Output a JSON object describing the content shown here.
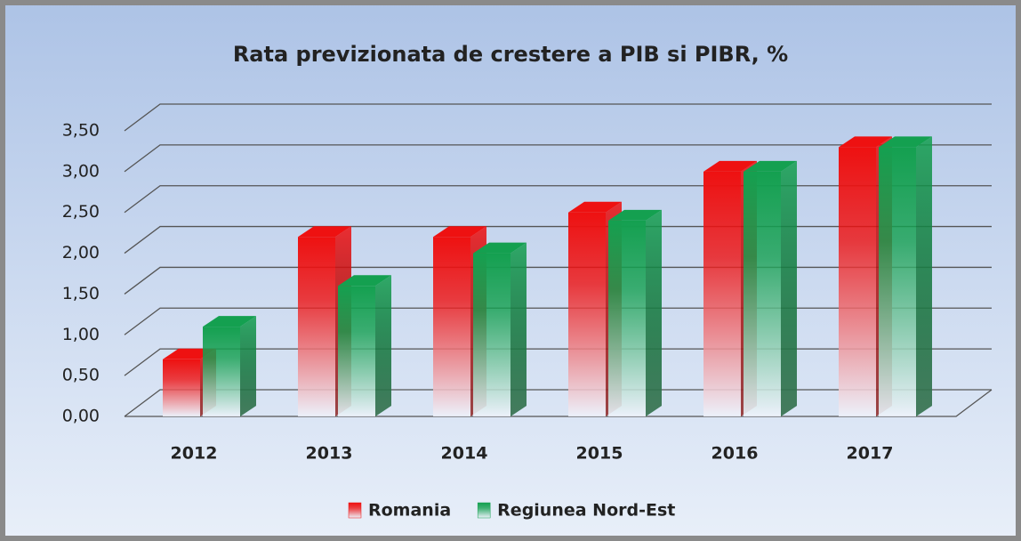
{
  "chart_data": {
    "type": "bar3d",
    "title": "Rata previzionata de crestere a PIB si PIBR, %",
    "categories": [
      "2012",
      "2013",
      "2014",
      "2015",
      "2016",
      "2017"
    ],
    "series": [
      {
        "name": "Romania",
        "color": "#ee1111",
        "values": [
          0.7,
          2.2,
          2.2,
          2.5,
          3.0,
          3.3
        ]
      },
      {
        "name": "Regiunea Nord-Est",
        "color": "#14a050",
        "values": [
          1.1,
          1.6,
          2.0,
          2.4,
          3.0,
          3.3
        ]
      }
    ],
    "ylim": [
      0,
      3.5
    ],
    "yticks": [
      {
        "value": 0,
        "label": "0,00"
      },
      {
        "value": 0.5,
        "label": "0,50"
      },
      {
        "value": 1,
        "label": "1,00"
      },
      {
        "value": 1.5,
        "label": "1,50"
      },
      {
        "value": 2,
        "label": "2,00"
      },
      {
        "value": 2.5,
        "label": "2,50"
      },
      {
        "value": 3,
        "label": "3,00"
      },
      {
        "value": 3.5,
        "label": "3,50"
      }
    ],
    "grid": true,
    "legend": "bottom"
  }
}
